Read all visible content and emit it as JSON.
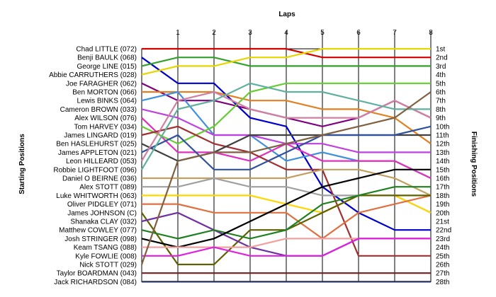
{
  "chart_data": {
    "type": "line",
    "xlabel": "Laps",
    "ylabel_left": "Starting Positions",
    "ylabel_right": "Finishing Positions",
    "laps": [
      1,
      2,
      3,
      4,
      5,
      6,
      7,
      8
    ],
    "grid": true,
    "drivers": [
      "Chad LITTLE (072)",
      "Benji BAULK (068)",
      "George LINE (015)",
      "Abbie CARRUTHERS (028)",
      "Joe FARAGHER (062)",
      "Ben MORTON (066)",
      "Lewis BINKS (064)",
      "Cameron BROWN (033)",
      "Alex WILSON (076)",
      "Tom HARVEY (034)",
      "James LINGARD (019)",
      "Ben HASLEHURST (025)",
      "James APPLETON (021)",
      "Leon HILLEARD (053)",
      "Robbie LIGHTFOOT (096)",
      "Daniel O BEIRNE (036)",
      "Alex STOTT (089)",
      "Luke WHITWORTH (063)",
      "Oliver PIDGLEY (071)",
      "James JOHNSON (C)",
      "Shanaka CLAY (032)",
      "Matthew COWLEY (077)",
      "Josh STRINGER (098)",
      "Keam TSANG (088)",
      "Kyle FOWLIE (008)",
      "Nick STOTT (029)",
      "Taylor BOARDMAN (043)",
      "Jack RICHARDSON (084)"
    ],
    "finish_labels": [
      "1st",
      "2nd",
      "3rd",
      "4th",
      "5th",
      "6th",
      "7th",
      "8th",
      "9th",
      "10th",
      "11th",
      "12th",
      "13th",
      "14th",
      "15th",
      "16th",
      "17th",
      "18th",
      "19th",
      "20th",
      "21st",
      "22nd",
      "23rd",
      "24th",
      "25th",
      "26th",
      "27th",
      "28th"
    ],
    "series": [
      {
        "color": "#d40000",
        "positions": [
          1,
          1,
          1,
          1,
          1,
          2,
          2,
          2,
          2
        ]
      },
      {
        "color": "#0000cc",
        "positions": [
          2,
          5,
          5,
          9,
          10,
          17,
          20,
          22,
          22
        ]
      },
      {
        "color": "#33a02c",
        "positions": [
          3,
          2,
          2,
          3,
          3,
          3,
          3,
          3,
          3
        ]
      },
      {
        "color": "#e6d600",
        "positions": [
          4,
          3,
          3,
          2,
          2,
          1,
          1,
          1,
          1
        ]
      },
      {
        "color": "#800080",
        "positions": [
          5,
          7,
          7,
          8,
          9,
          10,
          9,
          7,
          9
        ]
      },
      {
        "color": "#e08020",
        "positions": [
          6,
          6,
          6,
          7,
          7,
          8,
          8,
          9,
          12
        ]
      },
      {
        "color": "#4090e0",
        "positions": [
          7,
          6,
          11,
          11,
          14,
          13,
          14,
          14,
          16
        ]
      },
      {
        "color": "#c040e0",
        "positions": [
          8,
          9,
          11,
          11,
          12,
          12,
          13,
          13,
          13
        ]
      },
      {
        "color": "#e030c0",
        "positions": [
          9,
          13,
          13,
          14,
          12,
          14,
          14,
          14,
          16
        ]
      },
      {
        "color": "#66cc33",
        "positions": [
          10,
          12,
          10,
          6,
          5,
          5,
          5,
          5,
          5
        ]
      },
      {
        "color": "#a03030",
        "positions": [
          11,
          10,
          12,
          13,
          15,
          15,
          25,
          25,
          25
        ]
      },
      {
        "color": "#404040",
        "positions": [
          12,
          14,
          13,
          11,
          11,
          11,
          11,
          11,
          11
        ]
      },
      {
        "color": "#3050a0",
        "positions": [
          13,
          11,
          15,
          15,
          13,
          11,
          11,
          11,
          10
        ]
      },
      {
        "color": "#d080a0",
        "positions": [
          14,
          7,
          6,
          8,
          9,
          9,
          9,
          7,
          9
        ]
      },
      {
        "color": "#60b0a0",
        "positions": [
          15,
          8,
          7,
          5,
          6,
          6,
          7,
          8,
          8
        ]
      },
      {
        "color": "#c0a060",
        "positions": [
          16,
          16,
          16,
          16,
          16,
          15,
          15,
          16,
          18
        ]
      },
      {
        "color": "#a0a0a0",
        "positions": [
          17,
          17,
          16,
          17,
          17,
          18,
          18,
          18,
          20
        ]
      },
      {
        "color": "#ffd700",
        "positions": [
          18,
          18,
          18,
          18,
          19,
          20,
          18,
          18,
          20
        ]
      },
      {
        "color": "#e07040",
        "positions": [
          19,
          19,
          20,
          20,
          20,
          23,
          20,
          19,
          18
        ]
      },
      {
        "color": "#606000",
        "positions": [
          20,
          26,
          26,
          22,
          22,
          20,
          18,
          18,
          18
        ]
      },
      {
        "color": "#7030a0",
        "positions": [
          21,
          20,
          22,
          24,
          25,
          25,
          23,
          23,
          23
        ]
      },
      {
        "color": "#208020",
        "positions": [
          22,
          23,
          22,
          23,
          22,
          19,
          18,
          17,
          17
        ]
      },
      {
        "color": "#000000",
        "positions": [
          23,
          24,
          23,
          21,
          19,
          17,
          16,
          15,
          15
        ]
      },
      {
        "color": "#f0a0a0",
        "positions": [
          24,
          24,
          24,
          24,
          23,
          23,
          23,
          23,
          23
        ]
      },
      {
        "color": "#e020e0",
        "positions": [
          25,
          25,
          24,
          25,
          25,
          25,
          23,
          23,
          23
        ]
      },
      {
        "color": "#806040",
        "positions": [
          26,
          14,
          13,
          13,
          12,
          11,
          10,
          9,
          6
        ]
      },
      {
        "color": "#702020",
        "positions": [
          27,
          27,
          27,
          27,
          27,
          27,
          27,
          27,
          27
        ]
      },
      {
        "color": "#203060",
        "positions": [
          28,
          28,
          28,
          28,
          28,
          28,
          28,
          28,
          28
        ]
      }
    ]
  }
}
